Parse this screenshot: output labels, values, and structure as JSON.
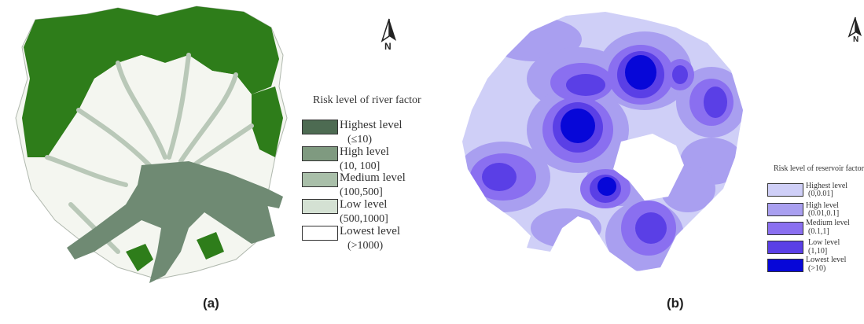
{
  "panel_a": {
    "caption": "(a)",
    "north_label": "N",
    "legend_title": "Risk level of river factor",
    "legend": [
      {
        "label": "Highest level",
        "range": "(≤10)",
        "color": "#4d6b52"
      },
      {
        "label": "High level",
        "range": "(10,  100]",
        "color": "#7f9a80"
      },
      {
        "label": "Medium level",
        "range": "(100,500]",
        "color": "#a9bfa9"
      },
      {
        "label": "Low level",
        "range": "(500,1000]",
        "color": "#d4e1d3"
      },
      {
        "label": "Lowest level",
        "range": "(>1000)",
        "color": "#ffffff"
      }
    ],
    "colors": {
      "forest": "#2e7d1a",
      "river": "#6f8a73",
      "land": "#f4f6f0",
      "stream": "#b9c8b8"
    }
  },
  "panel_b": {
    "caption": "(b)",
    "north_label": "N",
    "legend_title": "Risk level of reservoir factor",
    "legend": [
      {
        "label": "Highest level",
        "range": "(0,0.01]",
        "color": "#cfcff7"
      },
      {
        "label": "High level",
        "range": "(0.01,0.1]",
        "color": "#a99ff0"
      },
      {
        "label": "Medium level",
        "range": "(0.1,1]",
        "color": "#8a6ff0"
      },
      {
        "label": "Low level",
        "range": "(1,10]",
        "color": "#5a3fe6"
      },
      {
        "label": "Lowest level",
        "range": "(>10)",
        "color": "#0707d8"
      }
    ]
  }
}
